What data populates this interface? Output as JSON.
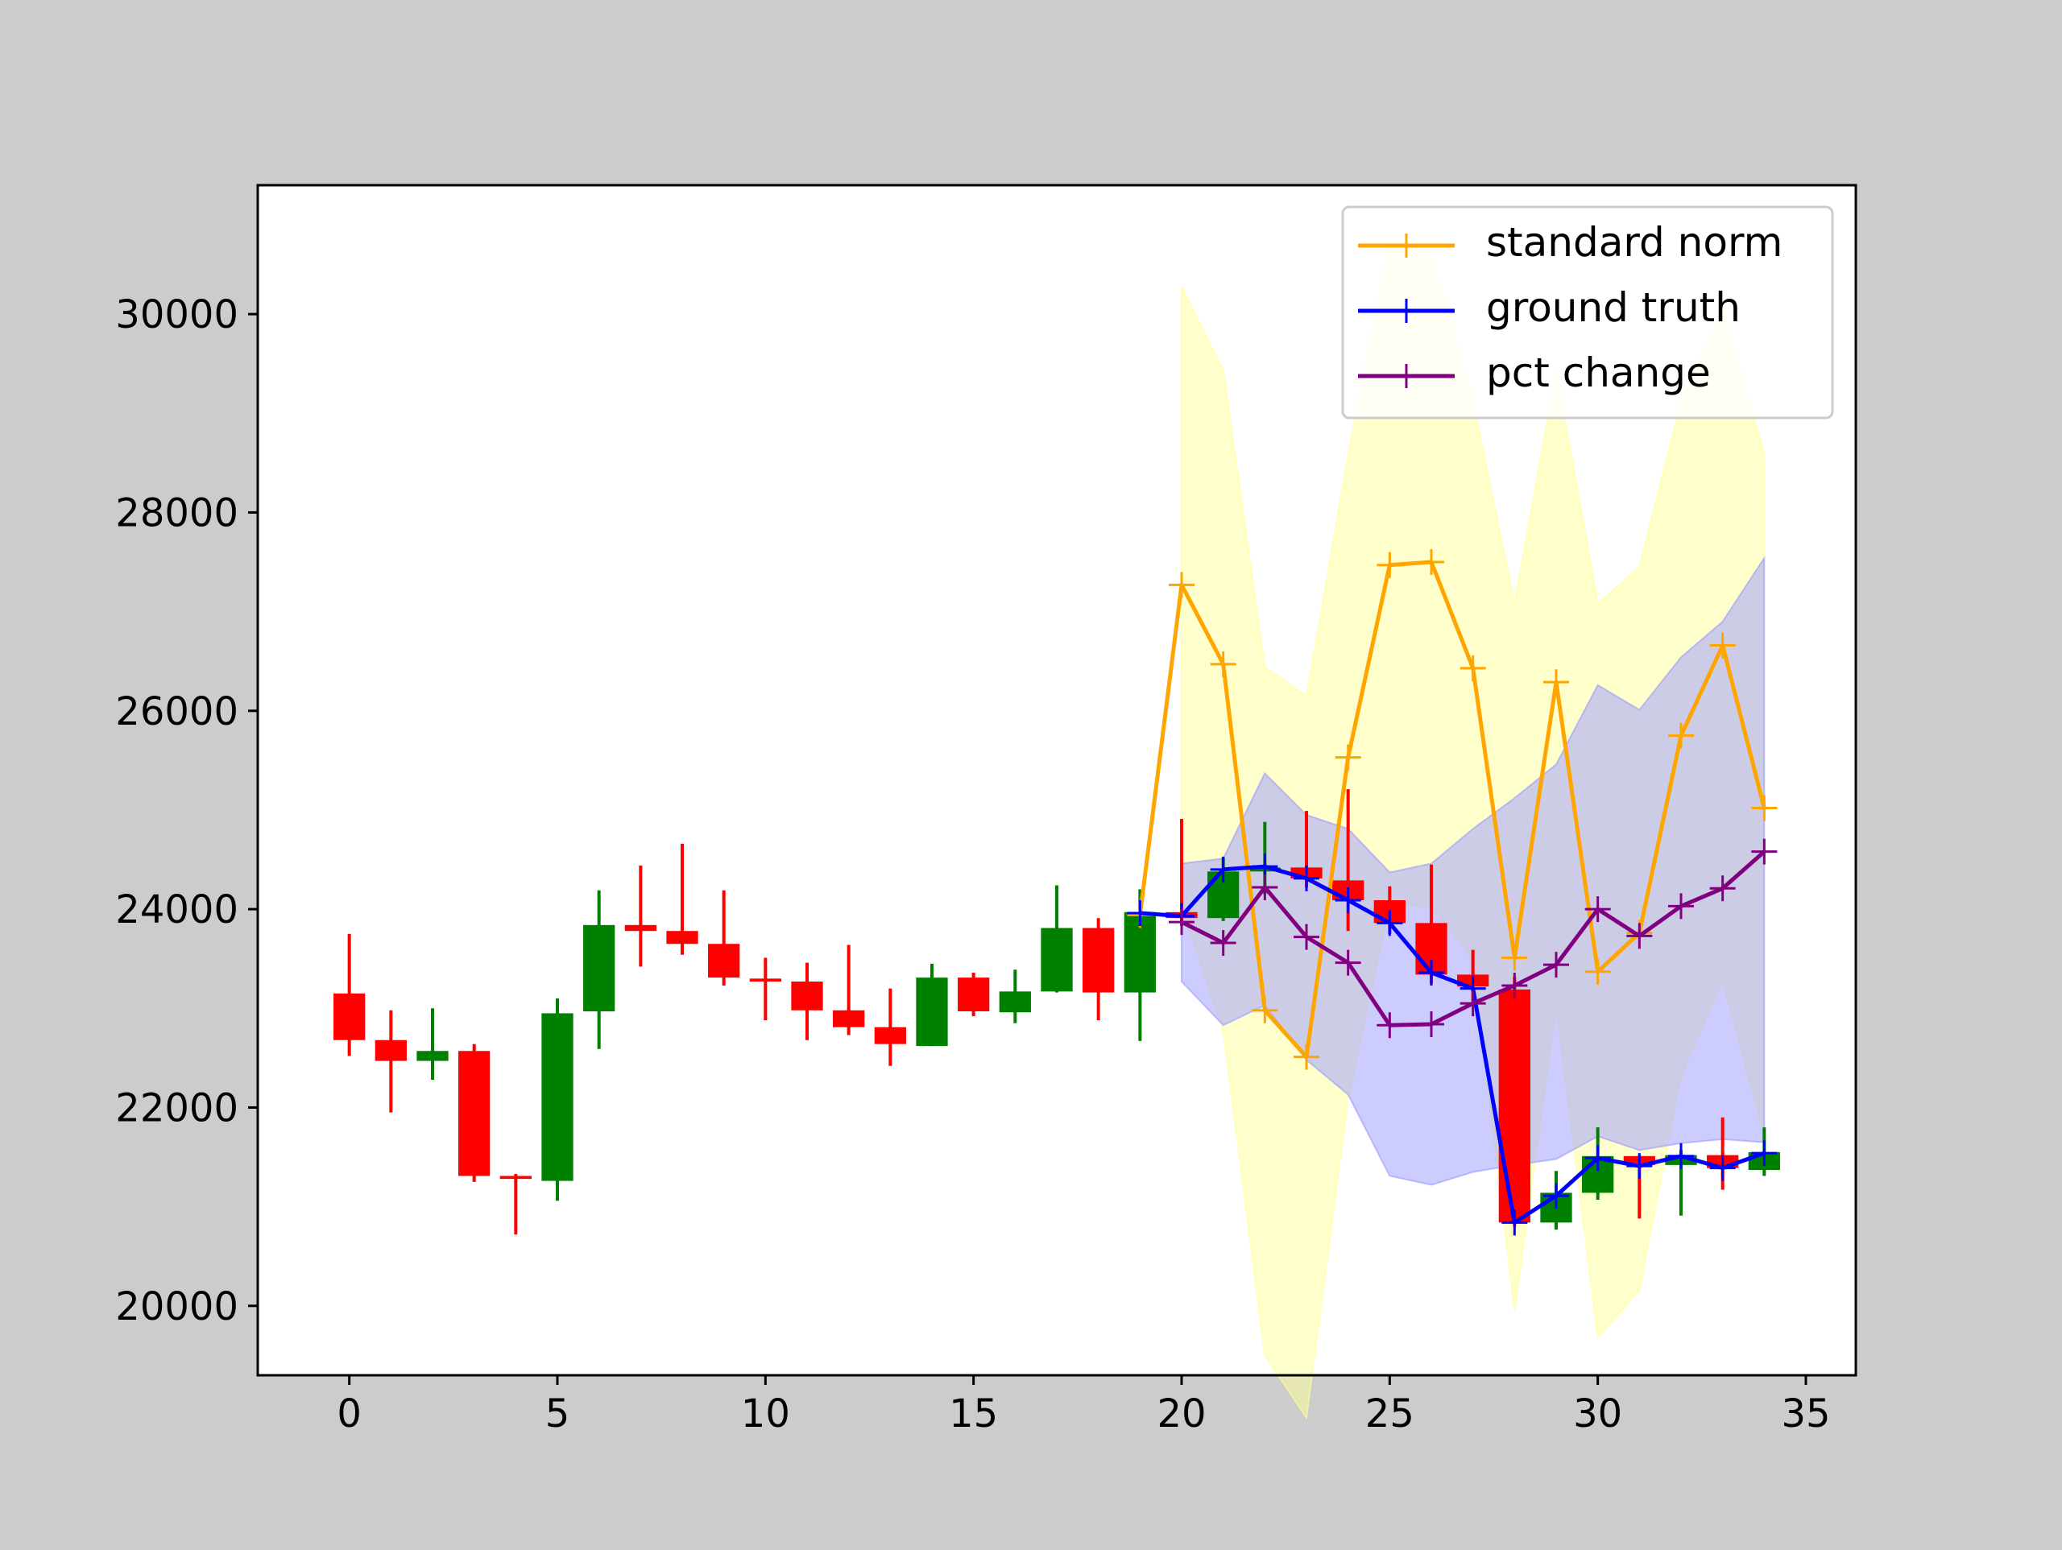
{
  "chart_data": {
    "type": "candlestick",
    "title": "",
    "xlabel": "",
    "ylabel": "",
    "xlim": [
      -2.2,
      36.2
    ],
    "ylim": [
      19300,
      31300
    ],
    "xticks": [
      0,
      5,
      10,
      15,
      20,
      25,
      30,
      35
    ],
    "yticks": [
      20000,
      22000,
      24000,
      26000,
      28000,
      30000
    ],
    "grid": false,
    "legend_position": "upper right",
    "colors": {
      "up": "#008000",
      "down": "#ff0000",
      "standard_norm": "#ffa500",
      "ground_truth": "#0000ff",
      "pct_change": "#800080",
      "standard_band": "#ffff99",
      "pct_band": "#9999ff"
    },
    "candles": [
      {
        "x": 0,
        "open": 23150,
        "close": 22680,
        "high": 23750,
        "low": 22520
      },
      {
        "x": 1,
        "open": 22680,
        "close": 22470,
        "high": 22980,
        "low": 21950
      },
      {
        "x": 2,
        "open": 22470,
        "close": 22570,
        "high": 23000,
        "low": 22280
      },
      {
        "x": 3,
        "open": 22570,
        "close": 21310,
        "high": 22640,
        "low": 21250
      },
      {
        "x": 4,
        "open": 21310,
        "close": 21280,
        "high": 21330,
        "low": 20720
      },
      {
        "x": 5,
        "open": 21260,
        "close": 22950,
        "high": 23100,
        "low": 21060
      },
      {
        "x": 6,
        "open": 22970,
        "close": 23840,
        "high": 24190,
        "low": 22590
      },
      {
        "x": 7,
        "open": 23840,
        "close": 23780,
        "high": 24440,
        "low": 23420
      },
      {
        "x": 8,
        "open": 23780,
        "close": 23650,
        "high": 24660,
        "low": 23540
      },
      {
        "x": 9,
        "open": 23650,
        "close": 23310,
        "high": 24190,
        "low": 23230
      },
      {
        "x": 10,
        "open": 23300,
        "close": 23270,
        "high": 23510,
        "low": 22880
      },
      {
        "x": 11,
        "open": 23270,
        "close": 22980,
        "high": 23460,
        "low": 22680
      },
      {
        "x": 12,
        "open": 22980,
        "close": 22810,
        "high": 23640,
        "low": 22730
      },
      {
        "x": 13,
        "open": 22810,
        "close": 22640,
        "high": 23200,
        "low": 22420
      },
      {
        "x": 14,
        "open": 22620,
        "close": 23310,
        "high": 23450,
        "low": 22620
      },
      {
        "x": 15,
        "open": 23310,
        "close": 22970,
        "high": 23360,
        "low": 22920
      },
      {
        "x": 16,
        "open": 22960,
        "close": 23170,
        "high": 23390,
        "low": 22850
      },
      {
        "x": 17,
        "open": 23170,
        "close": 23810,
        "high": 24240,
        "low": 23160
      },
      {
        "x": 18,
        "open": 23810,
        "close": 23160,
        "high": 23910,
        "low": 22880
      },
      {
        "x": 19,
        "open": 23160,
        "close": 23970,
        "high": 24200,
        "low": 22670
      },
      {
        "x": 20,
        "open": 23970,
        "close": 23910,
        "high": 24910,
        "low": 23830
      },
      {
        "x": 21,
        "open": 23910,
        "close": 24380,
        "high": 24520,
        "low": 23880
      },
      {
        "x": 22,
        "open": 24380,
        "close": 24420,
        "high": 24880,
        "low": 24150
      },
      {
        "x": 23,
        "open": 24420,
        "close": 24310,
        "high": 24990,
        "low": 24220
      },
      {
        "x": 24,
        "open": 24290,
        "close": 24090,
        "high": 25210,
        "low": 23780
      },
      {
        "x": 25,
        "open": 24090,
        "close": 23860,
        "high": 24230,
        "low": 23750
      },
      {
        "x": 26,
        "open": 23860,
        "close": 23340,
        "high": 24450,
        "low": 23250
      },
      {
        "x": 27,
        "open": 23340,
        "close": 23220,
        "high": 23590,
        "low": 23070
      },
      {
        "x": 28,
        "open": 23190,
        "close": 20840,
        "high": 23320,
        "low": 20800
      },
      {
        "x": 29,
        "open": 20840,
        "close": 21140,
        "high": 21360,
        "low": 20770
      },
      {
        "x": 30,
        "open": 21140,
        "close": 21510,
        "high": 21800,
        "low": 21070
      },
      {
        "x": 31,
        "open": 21510,
        "close": 21420,
        "high": 21520,
        "low": 20880
      },
      {
        "x": 32,
        "open": 21420,
        "close": 21520,
        "high": 21570,
        "low": 20910
      },
      {
        "x": 33,
        "open": 21520,
        "close": 21390,
        "high": 21900,
        "low": 21170
      },
      {
        "x": 34,
        "open": 21370,
        "close": 21550,
        "high": 21800,
        "low": 21310
      }
    ],
    "series": [
      {
        "name": "standard norm",
        "color": "#ffa500",
        "x": [
          19,
          20,
          21,
          22,
          23,
          24,
          25,
          26,
          27,
          28,
          29,
          30,
          31,
          32,
          33,
          34
        ],
        "values": [
          23940,
          27270,
          26470,
          22980,
          22510,
          25530,
          27470,
          27500,
          26430,
          23510,
          26290,
          23370,
          23760,
          25750,
          26660,
          25020
        ]
      },
      {
        "name": "ground truth",
        "color": "#0000ff",
        "x": [
          19,
          20,
          21,
          22,
          23,
          24,
          25,
          26,
          27,
          28,
          29,
          30,
          31,
          32,
          33,
          34
        ],
        "values": [
          23960,
          23930,
          24400,
          24430,
          24310,
          24090,
          23860,
          23360,
          23200,
          20840,
          21110,
          21490,
          21410,
          21510,
          21390,
          21540
        ]
      },
      {
        "name": "pct change",
        "color": "#800080",
        "x": [
          20,
          21,
          22,
          23,
          24,
          25,
          26,
          27,
          28,
          29,
          30,
          31,
          32,
          33,
          34
        ],
        "values": [
          23870,
          23660,
          24220,
          23720,
          23460,
          22830,
          22840,
          23050,
          23230,
          23440,
          24000,
          23730,
          24030,
          24210,
          24580
        ]
      }
    ],
    "bands": [
      {
        "series": "standard norm",
        "color": "#ffff99",
        "x": [
          20,
          21,
          22,
          23,
          24,
          25,
          26,
          27,
          28,
          29,
          30,
          31,
          32,
          33,
          34
        ],
        "upper": [
          30280,
          29430,
          26440,
          26150,
          28580,
          30720,
          30580,
          29130,
          27080,
          29430,
          27080,
          27450,
          29120,
          30040,
          28600
        ],
        "lower": [
          24030,
          22770,
          19500,
          18870,
          22090,
          24060,
          24020,
          23500,
          19950,
          23020,
          19680,
          20160,
          22320,
          23280,
          21730
        ]
      },
      {
        "series": "pct change",
        "color": "#9999ff",
        "x": [
          20,
          21,
          22,
          23,
          24,
          25,
          26,
          27,
          28,
          29,
          30,
          31,
          32,
          33,
          34
        ],
        "upper": [
          24460,
          24510,
          25370,
          24950,
          24810,
          24370,
          24460,
          24810,
          25120,
          25460,
          26260,
          26010,
          26540,
          26900,
          27540
        ],
        "lower": [
          23270,
          22830,
          23030,
          22480,
          22130,
          21310,
          21220,
          21350,
          21420,
          21480,
          21710,
          21570,
          21640,
          21680,
          21650
        ]
      }
    ],
    "legend": [
      "standard norm",
      "ground truth",
      "pct change"
    ]
  }
}
